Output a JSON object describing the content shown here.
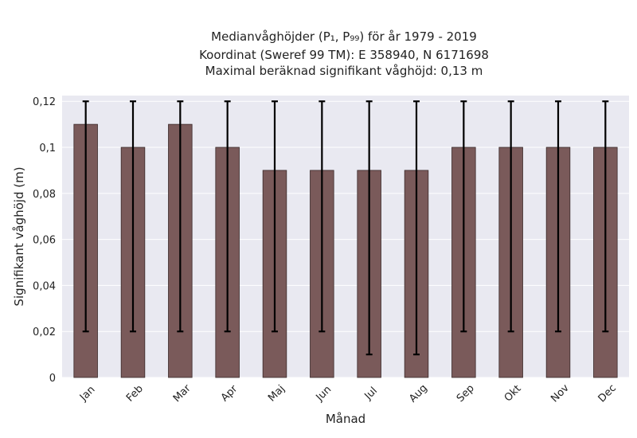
{
  "chart_data": {
    "type": "bar",
    "title_lines": [
      "Medianvåghöjder (P₁, P₉₉) för år 1979 - 2019",
      "Koordinat (Sweref 99 TM): E 358940, N 6171698",
      "Maximal beräknad signifikant våghöjd: 0,13 m"
    ],
    "xlabel": "Månad",
    "ylabel": "Signifikant våghöjd (m)",
    "categories": [
      "Jan",
      "Feb",
      "Mar",
      "Apr",
      "Maj",
      "Jun",
      "Jul",
      "Aug",
      "Sep",
      "Okt",
      "Nov",
      "Dec"
    ],
    "values": [
      0.11,
      0.1,
      0.11,
      0.1,
      0.09,
      0.09,
      0.09,
      0.09,
      0.1,
      0.1,
      0.1,
      0.1
    ],
    "error_low": [
      0.02,
      0.02,
      0.02,
      0.02,
      0.02,
      0.02,
      0.01,
      0.01,
      0.02,
      0.02,
      0.02,
      0.02
    ],
    "error_high": [
      0.12,
      0.12,
      0.12,
      0.12,
      0.12,
      0.12,
      0.12,
      0.12,
      0.12,
      0.12,
      0.12,
      0.12
    ],
    "ylim": [
      0,
      0.1225
    ],
    "yticks": [
      0,
      0.02,
      0.04,
      0.06,
      0.08,
      0.1,
      0.12
    ],
    "ytick_labels": [
      "0",
      "0,02",
      "0,04",
      "0,06",
      "0,08",
      "0,1",
      "0,12"
    ],
    "grid": true,
    "colors": {
      "bar": "#7a5a5a",
      "bar_edge": "#3a2a2a",
      "plot_bg": "#e9e9f1",
      "grid": "#ffffff",
      "error": "#000000"
    }
  }
}
